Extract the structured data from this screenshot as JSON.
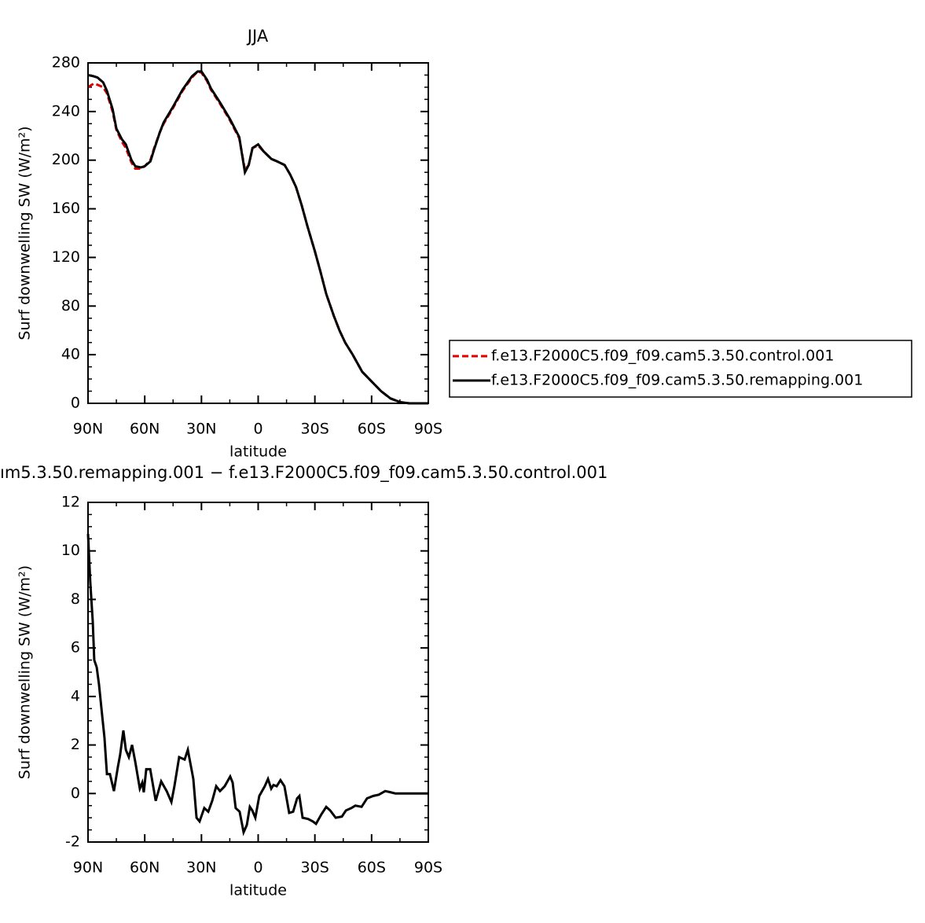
{
  "chart_data": [
    {
      "type": "line",
      "title": "JJA",
      "xlabel": "latitude",
      "ylabel": "Surf downwelling SW (W/m²)",
      "x": [
        90,
        87,
        85,
        82,
        80,
        77,
        75,
        72,
        70,
        67,
        65,
        62,
        60,
        57,
        55,
        52,
        50,
        45,
        40,
        35,
        32,
        30,
        27,
        25,
        20,
        15,
        10,
        7,
        5,
        3,
        0,
        -3,
        -7,
        -10,
        -14,
        -17,
        -20,
        -23,
        -26,
        -30,
        -33,
        -36,
        -40,
        -43,
        -46,
        -50,
        -55,
        -60,
        -65,
        -70,
        -75,
        -80,
        -85,
        -90
      ],
      "series": [
        {
          "name": "f.e13.F2000C5.f09_f09.cam5.3.50.control.001",
          "color": "#e00000",
          "style": "dashed",
          "values": [
            260,
            263,
            262,
            260,
            255,
            240,
            225,
            215,
            210,
            198,
            193,
            193,
            195,
            200,
            210,
            223,
            230,
            243,
            257,
            268,
            273,
            272,
            265,
            258,
            246,
            233,
            218,
            192,
            196,
            210,
            212,
            207,
            201,
            199,
            196,
            188,
            178,
            163,
            146,
            125,
            108,
            90,
            72,
            60,
            50,
            40,
            26,
            18,
            10,
            4,
            1,
            0,
            0,
            0
          ]
        },
        {
          "name": "f.e13.F2000C5.f09_f09.cam5.3.50.remapping.001",
          "color": "#000000",
          "style": "solid",
          "values": [
            270,
            269,
            268,
            264,
            257,
            242,
            226,
            217,
            213,
            200,
            195,
            194,
            195,
            199,
            209,
            223,
            231,
            244,
            258,
            269,
            273,
            273,
            266,
            259,
            247,
            234,
            219,
            190,
            196,
            210,
            213,
            207,
            201,
            199,
            196,
            188,
            178,
            163,
            146,
            125,
            108,
            90,
            72,
            60,
            50,
            40,
            26,
            18,
            10,
            4,
            1,
            0,
            0,
            0
          ]
        }
      ],
      "xlim": [
        90,
        -90
      ],
      "xticks": [
        {
          "value": 90,
          "label": "90N"
        },
        {
          "value": 60,
          "label": "60N"
        },
        {
          "value": 30,
          "label": "30N"
        },
        0,
        {
          "value": -30,
          "label": "30S"
        },
        {
          "value": -60,
          "label": "60S"
        },
        {
          "value": -90,
          "label": "90S"
        }
      ],
      "ylim": [
        0,
        280
      ],
      "yticks": [
        0,
        40,
        80,
        120,
        160,
        200,
        240,
        280
      ],
      "legend": "right"
    },
    {
      "type": "line",
      "title": "ım5.3.50.remapping.001 − f.e13.F2000C5.f09_f09.cam5.3.50.control.001",
      "xlabel": "latitude",
      "ylabel": "Surf downwelling SW (W/m²)",
      "x": [
        90,
        88.8,
        87.5,
        86.7,
        85.4,
        84.2,
        82.5,
        81.3,
        80,
        78.4,
        76.3,
        74.2,
        73,
        71.3,
        70,
        68.4,
        66.7,
        65,
        62.6,
        61.3,
        60.5,
        59.2,
        57.1,
        54.2,
        51.3,
        48.4,
        45.9,
        44.3,
        41.8,
        38.9,
        37.2,
        34.3,
        32.6,
        31,
        28.5,
        26.4,
        24.3,
        22.2,
        20.2,
        17.7,
        14.8,
        13.5,
        11.9,
        9.8,
        7.7,
        6,
        4.4,
        3.1,
        1.5,
        -0.6,
        -3.5,
        -5.2,
        -6.9,
        -8.1,
        -9.8,
        -11.8,
        -13.9,
        -16.4,
        -18.5,
        -20.6,
        -21.8,
        -23.5,
        -26.4,
        -28.9,
        -30.6,
        -33.5,
        -36,
        -38.1,
        -41,
        -44.3,
        -46.4,
        -49.3,
        -51.4,
        -54.7,
        -57.6,
        -60.9,
        -63.8,
        -67.2,
        -70.1,
        -72.6,
        -90
      ],
      "values": [
        10.7,
        8.7,
        7.1,
        5.5,
        5.2,
        4.5,
        3.2,
        2.3,
        0.8,
        0.8,
        0.1,
        1.1,
        1.6,
        2.6,
        1.8,
        1.5,
        2.0,
        1.3,
        0.2,
        0.45,
        0.05,
        1.0,
        1.0,
        -0.3,
        0.5,
        0.1,
        -0.35,
        0.3,
        1.5,
        1.4,
        1.8,
        0.6,
        -1.0,
        -1.15,
        -0.6,
        -0.75,
        -0.3,
        0.3,
        0.1,
        0.3,
        0.7,
        0.45,
        -0.6,
        -0.75,
        -1.6,
        -1.3,
        -0.55,
        -0.7,
        -1.0,
        -0.1,
        0.3,
        0.6,
        0.2,
        0.35,
        0.3,
        0.55,
        0.3,
        -0.8,
        -0.75,
        -0.2,
        -0.1,
        -1.0,
        -1.05,
        -1.15,
        -1.25,
        -0.85,
        -0.55,
        -0.7,
        -1.0,
        -0.95,
        -0.7,
        -0.6,
        -0.5,
        -0.55,
        -0.2,
        -0.1,
        -0.05,
        0.1,
        0.05,
        0,
        0
      ],
      "color": "#000000",
      "xlim": [
        90,
        -90
      ],
      "xticks": [
        {
          "value": 90,
          "label": "90N"
        },
        {
          "value": 60,
          "label": "60N"
        },
        {
          "value": 30,
          "label": "30N"
        },
        0,
        {
          "value": -30,
          "label": "30S"
        },
        {
          "value": -60,
          "label": "60S"
        },
        {
          "value": -90,
          "label": "90S"
        }
      ],
      "ylim": [
        -2,
        12
      ],
      "yticks": [
        -2,
        0,
        2,
        4,
        6,
        8,
        10,
        12
      ]
    }
  ]
}
